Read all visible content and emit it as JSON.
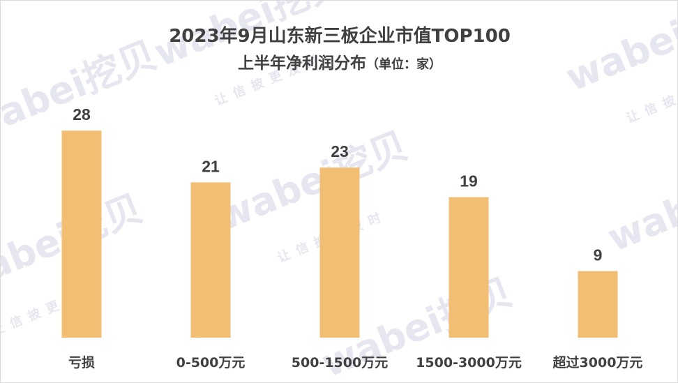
{
  "chart_data": {
    "type": "bar",
    "title": "2023年9月山东新三板企业市值TOP100",
    "subtitle": "上半年净利润分布",
    "subtitle_unit": "（单位：家）",
    "categories": [
      "亏损",
      "0-500万元",
      "500-1500万元",
      "1500-3000万元",
      "超过3000万元"
    ],
    "values": [
      28,
      21,
      23,
      19,
      9
    ],
    "ylim": [
      0,
      28
    ],
    "grid": false,
    "legend": "none",
    "bar_color": "#F2BE74",
    "label_color": "#404040"
  },
  "watermark": {
    "brand": "wabei挖贝",
    "slogan": "让信披更及时",
    "color": "#E8E8F2"
  }
}
